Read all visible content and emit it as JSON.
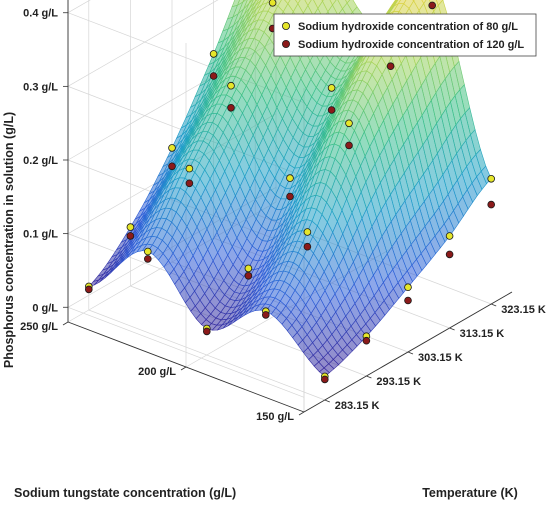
{
  "chart_data": {
    "type": "surface-3d",
    "title": "",
    "xlabel": "Temperature (K)",
    "ylabel": "Sodium tungstate concentration (g/L)",
    "zlabel": "Phosphorus concentration in solution (g/L)",
    "x_ticks": [
      "283.15 K",
      "293.15 K",
      "303.15 K",
      "313.15 K",
      "323.15 K"
    ],
    "y_ticks": [
      "150 g/L",
      "200 g/L",
      "250 g/L"
    ],
    "z_ticks": [
      "0 g/L",
      "0.1 g/L",
      "0.2 g/L",
      "0.3 g/L",
      "0.4 g/L"
    ],
    "xlim": [
      278.15,
      328.15
    ],
    "ylim": [
      150,
      250
    ],
    "zlim": [
      -0.02,
      0.42
    ],
    "legend_position": "top-right",
    "colormap": [
      "#3b1f8f",
      "#2f5fd8",
      "#1fa0c8",
      "#3cc08a",
      "#a8d45a",
      "#f2d13a"
    ],
    "series": [
      {
        "name": "Sodium hydroxide concentration of 80 g/L",
        "color": "#e6e62a",
        "points": [
          {
            "T": 283.15,
            "c": 150,
            "p": 0.012
          },
          {
            "T": 293.15,
            "c": 150,
            "p": 0.034
          },
          {
            "T": 303.15,
            "c": 150,
            "p": 0.068
          },
          {
            "T": 313.15,
            "c": 150,
            "p": 0.105
          },
          {
            "T": 323.15,
            "c": 150,
            "p": 0.15
          },
          {
            "T": 283.15,
            "c": 175,
            "p": 0.07
          },
          {
            "T": 293.15,
            "c": 175,
            "p": 0.145
          },
          {
            "T": 303.15,
            "c": 175,
            "p": 0.26
          },
          {
            "T": 313.15,
            "c": 175,
            "p": 0.34
          },
          {
            "T": 323.15,
            "c": 175,
            "p": 0.395
          },
          {
            "T": 283.15,
            "c": 200,
            "p": 0.016
          },
          {
            "T": 293.15,
            "c": 200,
            "p": 0.065
          },
          {
            "T": 303.15,
            "c": 200,
            "p": 0.155
          },
          {
            "T": 313.15,
            "c": 200,
            "p": 0.245
          },
          {
            "T": 323.15,
            "c": 200,
            "p": 0.3
          },
          {
            "T": 283.15,
            "c": 225,
            "p": 0.09
          },
          {
            "T": 293.15,
            "c": 225,
            "p": 0.17
          },
          {
            "T": 303.15,
            "c": 225,
            "p": 0.25
          },
          {
            "T": 313.15,
            "c": 225,
            "p": 0.33
          },
          {
            "T": 323.15,
            "c": 225,
            "p": 0.385
          },
          {
            "T": 283.15,
            "c": 250,
            "p": 0.012
          },
          {
            "T": 293.15,
            "c": 250,
            "p": 0.06
          },
          {
            "T": 303.15,
            "c": 250,
            "p": 0.135
          },
          {
            "T": 313.15,
            "c": 250,
            "p": 0.23
          },
          {
            "T": 323.15,
            "c": 250,
            "p": 0.33
          }
        ]
      },
      {
        "name": "Sodium hydroxide concentration of 120 g/L",
        "color": "#8b1a1a",
        "points": [
          {
            "T": 283.15,
            "c": 150,
            "p": 0.008
          },
          {
            "T": 293.15,
            "c": 150,
            "p": 0.028
          },
          {
            "T": 303.15,
            "c": 150,
            "p": 0.05
          },
          {
            "T": 313.15,
            "c": 150,
            "p": 0.08
          },
          {
            "T": 323.15,
            "c": 150,
            "p": 0.115
          },
          {
            "T": 283.15,
            "c": 175,
            "p": 0.065
          },
          {
            "T": 293.15,
            "c": 175,
            "p": 0.125
          },
          {
            "T": 303.15,
            "c": 175,
            "p": 0.23
          },
          {
            "T": 313.15,
            "c": 175,
            "p": 0.305
          },
          {
            "T": 323.15,
            "c": 175,
            "p": 0.355
          },
          {
            "T": 283.15,
            "c": 200,
            "p": 0.012
          },
          {
            "T": 293.15,
            "c": 200,
            "p": 0.055
          },
          {
            "T": 303.15,
            "c": 200,
            "p": 0.13
          },
          {
            "T": 313.15,
            "c": 200,
            "p": 0.215
          },
          {
            "T": 323.15,
            "c": 200,
            "p": 0.27
          },
          {
            "T": 283.15,
            "c": 225,
            "p": 0.08
          },
          {
            "T": 293.15,
            "c": 225,
            "p": 0.15
          },
          {
            "T": 303.15,
            "c": 225,
            "p": 0.22
          },
          {
            "T": 313.15,
            "c": 225,
            "p": 0.295
          },
          {
            "T": 323.15,
            "c": 225,
            "p": 0.35
          },
          {
            "T": 283.15,
            "c": 250,
            "p": 0.008
          },
          {
            "T": 293.15,
            "c": 250,
            "p": 0.048
          },
          {
            "T": 303.15,
            "c": 250,
            "p": 0.11
          },
          {
            "T": 313.15,
            "c": 250,
            "p": 0.2
          },
          {
            "T": 323.15,
            "c": 250,
            "p": 0.3
          }
        ]
      }
    ]
  }
}
